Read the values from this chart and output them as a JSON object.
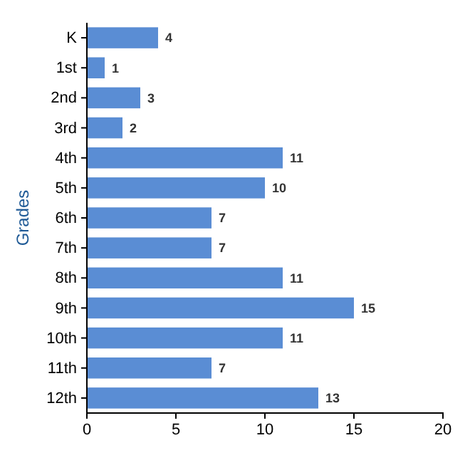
{
  "chart_data": {
    "type": "bar",
    "orientation": "horizontal",
    "ylabel": "Grades",
    "categories": [
      "K",
      "1st",
      "2nd",
      "3rd",
      "4th",
      "5th",
      "6th",
      "7th",
      "8th",
      "9th",
      "10th",
      "11th",
      "12th"
    ],
    "values": [
      4,
      1,
      3,
      2,
      11,
      10,
      7,
      7,
      11,
      15,
      11,
      7,
      13
    ],
    "color": "#5a8dd4",
    "xlim": [
      0,
      20
    ],
    "xticks": [
      0,
      5,
      10,
      15,
      20
    ],
    "data_labels": true,
    "grid": false
  }
}
